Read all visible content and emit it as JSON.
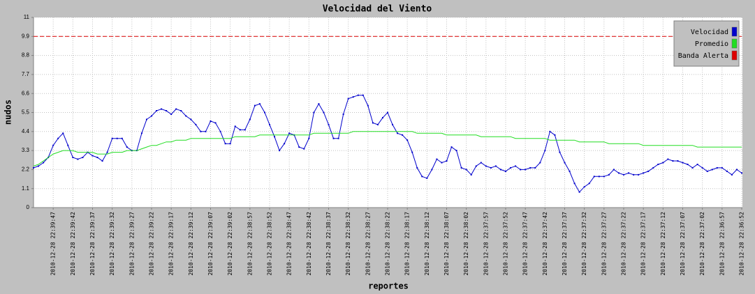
{
  "chart_data": {
    "type": "line",
    "title": "Velocidad del Viento",
    "x_label": "reportes",
    "y_label": "nudos",
    "legend": "top-right",
    "grid": true,
    "ylim": [
      0,
      11
    ],
    "yticks": [
      0,
      1.1,
      2.2,
      3.3,
      4.4,
      5.5,
      6.6,
      7.7,
      8.8,
      9.9,
      11
    ],
    "categories": [
      null,
      null,
      null,
      null,
      "2010-12-28 22:39:47",
      null,
      null,
      null,
      "2010-12-28 22:39:42",
      null,
      null,
      null,
      "2010-12-28 22:39:37",
      null,
      null,
      null,
      "2010-12-28 22:39:32",
      null,
      null,
      null,
      "2010-12-28 22:39:27",
      null,
      null,
      null,
      "2010-12-28 22:39:22",
      null,
      null,
      null,
      "2010-12-28 22:39:17",
      null,
      null,
      null,
      "2010-12-28 22:39:12",
      null,
      null,
      null,
      "2010-12-28 22:39:07",
      null,
      null,
      null,
      "2010-12-28 22:39:02",
      null,
      null,
      null,
      "2010-12-28 22:38:57",
      null,
      null,
      null,
      "2010-12-28 22:38:52",
      null,
      null,
      null,
      "2010-12-28 22:38:47",
      null,
      null,
      null,
      "2010-12-28 22:38:42",
      null,
      null,
      null,
      "2010-12-28 22:38:37",
      null,
      null,
      null,
      "2010-12-28 22:38:32",
      null,
      null,
      null,
      "2010-12-28 22:38:27",
      null,
      null,
      null,
      "2010-12-28 22:38:22",
      null,
      null,
      null,
      "2010-12-28 22:38:17",
      null,
      null,
      null,
      "2010-12-28 22:38:12",
      null,
      null,
      null,
      "2010-12-28 22:38:07",
      null,
      null,
      null,
      "2010-12-28 22:38:02",
      null,
      null,
      null,
      "2010-12-28 22:37:57",
      null,
      null,
      null,
      "2010-12-28 22:37:52",
      null,
      null,
      null,
      "2010-12-28 22:37:47",
      null,
      null,
      null,
      "2010-12-28 22:37:42",
      null,
      null,
      null,
      "2010-12-28 22:37:37",
      null,
      null,
      null,
      "2010-12-28 22:37:32",
      null,
      null,
      null,
      "2010-12-28 22:37:27",
      null,
      null,
      null,
      "2010-12-28 22:37:22",
      null,
      null,
      null,
      "2010-12-28 22:37:17",
      null,
      null,
      null,
      "2010-12-28 22:37:12",
      null,
      null,
      null,
      "2010-12-28 22:37:07",
      null,
      null,
      null,
      "2010-12-28 22:37:02",
      null,
      null,
      null,
      "2010-12-28 22:36:57",
      null,
      null,
      null,
      "2010-12-28 22:36:52"
    ],
    "series": [
      {
        "name": "Velocidad",
        "color": "#0000cc",
        "markers": true,
        "values": [
          2.3,
          2.4,
          2.6,
          2.9,
          3.6,
          4.0,
          4.3,
          3.6,
          2.9,
          2.8,
          2.9,
          3.2,
          3.0,
          2.9,
          2.7,
          3.2,
          4.0,
          4.0,
          4.0,
          3.5,
          3.3,
          3.3,
          4.3,
          5.1,
          5.3,
          5.6,
          5.7,
          5.6,
          5.4,
          5.7,
          5.6,
          5.3,
          5.1,
          4.8,
          4.4,
          4.4,
          5.0,
          4.9,
          4.4,
          3.7,
          3.7,
          4.7,
          4.5,
          4.5,
          5.1,
          5.9,
          6.0,
          5.5,
          4.8,
          4.1,
          3.3,
          3.7,
          4.3,
          4.2,
          3.5,
          3.4,
          4.0,
          5.5,
          6.0,
          5.5,
          4.8,
          4.0,
          4.0,
          5.4,
          6.3,
          6.4,
          6.5,
          6.5,
          5.9,
          4.9,
          4.8,
          5.2,
          5.5,
          4.8,
          4.3,
          4.2,
          3.9,
          3.2,
          2.3,
          1.8,
          1.7,
          2.2,
          2.8,
          2.6,
          2.7,
          3.5,
          3.3,
          2.3,
          2.2,
          1.9,
          2.4,
          2.6,
          2.4,
          2.3,
          2.4,
          2.2,
          2.1,
          2.3,
          2.4,
          2.2,
          2.2,
          2.3,
          2.3,
          2.6,
          3.3,
          4.4,
          4.2,
          3.2,
          2.6,
          2.1,
          1.4,
          0.9,
          1.2,
          1.4,
          1.8,
          1.8,
          1.8,
          1.9,
          2.2,
          2.0,
          1.9,
          2.0,
          1.9,
          1.9,
          2.0,
          2.1,
          2.3,
          2.5,
          2.6,
          2.8,
          2.7,
          2.7,
          2.6,
          2.5,
          2.3,
          2.5,
          2.3,
          2.1,
          2.2,
          2.3,
          2.3,
          2.1,
          1.9,
          2.2,
          2.0
        ]
      },
      {
        "name": "Promedio",
        "color": "#22dd22",
        "markers": false,
        "values": [
          2.4,
          2.5,
          2.7,
          2.9,
          3.1,
          3.2,
          3.3,
          3.3,
          3.3,
          3.2,
          3.2,
          3.2,
          3.2,
          3.1,
          3.1,
          3.1,
          3.2,
          3.2,
          3.2,
          3.3,
          3.3,
          3.3,
          3.4,
          3.5,
          3.6,
          3.6,
          3.7,
          3.8,
          3.8,
          3.9,
          3.9,
          3.9,
          4.0,
          4.0,
          4.0,
          4.0,
          4.0,
          4.0,
          4.0,
          4.0,
          4.0,
          4.1,
          4.1,
          4.1,
          4.1,
          4.1,
          4.2,
          4.2,
          4.2,
          4.2,
          4.2,
          4.2,
          4.2,
          4.2,
          4.2,
          4.2,
          4.2,
          4.3,
          4.3,
          4.3,
          4.3,
          4.3,
          4.3,
          4.3,
          4.3,
          4.4,
          4.4,
          4.4,
          4.4,
          4.4,
          4.4,
          4.4,
          4.4,
          4.4,
          4.4,
          4.4,
          4.4,
          4.4,
          4.3,
          4.3,
          4.3,
          4.3,
          4.3,
          4.3,
          4.2,
          4.2,
          4.2,
          4.2,
          4.2,
          4.2,
          4.2,
          4.1,
          4.1,
          4.1,
          4.1,
          4.1,
          4.1,
          4.1,
          4.0,
          4.0,
          4.0,
          4.0,
          4.0,
          4.0,
          4.0,
          3.9,
          3.9,
          3.9,
          3.9,
          3.9,
          3.9,
          3.8,
          3.8,
          3.8,
          3.8,
          3.8,
          3.8,
          3.7,
          3.7,
          3.7,
          3.7,
          3.7,
          3.7,
          3.7,
          3.6,
          3.6,
          3.6,
          3.6,
          3.6,
          3.6,
          3.6,
          3.6,
          3.6,
          3.6,
          3.6,
          3.5,
          3.5,
          3.5,
          3.5,
          3.5,
          3.5,
          3.5,
          3.5,
          3.5,
          3.5
        ]
      },
      {
        "name": "Banda Alerta",
        "color": "#dd0000",
        "dashed": true,
        "markers": false,
        "values": [
          9.9,
          9.9,
          9.9,
          9.9,
          9.9,
          9.9,
          9.9,
          9.9,
          9.9,
          9.9,
          9.9,
          9.9,
          9.9,
          9.9,
          9.9,
          9.9,
          9.9,
          9.9,
          9.9,
          9.9,
          9.9,
          9.9,
          9.9,
          9.9,
          9.9,
          9.9,
          9.9,
          9.9,
          9.9,
          9.9,
          9.9,
          9.9,
          9.9,
          9.9,
          9.9,
          9.9,
          9.9,
          9.9,
          9.9,
          9.9,
          9.9,
          9.9,
          9.9,
          9.9,
          9.9,
          9.9,
          9.9,
          9.9,
          9.9,
          9.9,
          9.9,
          9.9,
          9.9,
          9.9,
          9.9,
          9.9,
          9.9,
          9.9,
          9.9,
          9.9,
          9.9,
          9.9,
          9.9,
          9.9,
          9.9,
          9.9,
          9.9,
          9.9,
          9.9,
          9.9,
          9.9,
          9.9,
          9.9,
          9.9,
          9.9,
          9.9,
          9.9,
          9.9,
          9.9,
          9.9,
          9.9,
          9.9,
          9.9,
          9.9,
          9.9,
          9.9,
          9.9,
          9.9,
          9.9,
          9.9,
          9.9,
          9.9,
          9.9,
          9.9,
          9.9,
          9.9,
          9.9,
          9.9,
          9.9,
          9.9,
          9.9,
          9.9,
          9.9,
          9.9,
          9.9,
          9.9,
          9.9,
          9.9,
          9.9,
          9.9,
          9.9,
          9.9,
          9.9,
          9.9,
          9.9,
          9.9,
          9.9,
          9.9,
          9.9,
          9.9,
          9.9,
          9.9,
          9.9,
          9.9,
          9.9,
          9.9,
          9.9,
          9.9,
          9.9,
          9.9,
          9.9,
          9.9,
          9.9,
          9.9,
          9.9,
          9.9,
          9.9,
          9.9,
          9.9,
          9.9,
          9.9,
          9.9,
          9.9,
          9.9,
          9.9
        ]
      }
    ]
  }
}
